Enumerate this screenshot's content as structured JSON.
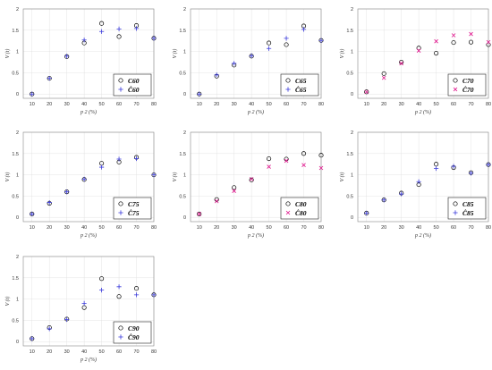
{
  "colors": {
    "circle": "#000000",
    "plus": "#3a3adb",
    "cross": "#e0148c",
    "axis": "#888888",
    "grid": "#dddddd"
  },
  "chart_data": [
    {
      "type": "scatter",
      "ylabel": "V (t)",
      "xlabel": "p 2 (%)",
      "xlim": [
        5,
        80
      ],
      "ylim": [
        -0.1,
        2
      ],
      "xticks": [
        "10",
        "20",
        "30",
        "40",
        "50",
        "60",
        "70",
        "80"
      ],
      "yticks": [
        "0",
        "0.5",
        "1",
        "1.5",
        "2"
      ],
      "legend_position": "bottom-right",
      "x": [
        10,
        20,
        30,
        40,
        50,
        60,
        70,
        80
      ],
      "series": [
        {
          "name": "C60",
          "marker": "circle",
          "values": [
            0.0,
            0.37,
            0.88,
            1.2,
            1.66,
            1.35,
            1.61,
            1.31
          ]
        },
        {
          "name": "Ĉ60",
          "marker": "plus",
          "values": [
            0.0,
            0.37,
            0.89,
            1.27,
            1.47,
            1.53,
            1.54,
            1.31
          ]
        }
      ]
    },
    {
      "type": "scatter",
      "ylabel": "V (t)",
      "xlabel": "p 2 (%)",
      "xlim": [
        5,
        80
      ],
      "ylim": [
        -0.1,
        2
      ],
      "xticks": [
        "10",
        "20",
        "30",
        "40",
        "50",
        "60",
        "70",
        "80"
      ],
      "yticks": [
        "0",
        "0.5",
        "1",
        "1.5",
        "2"
      ],
      "legend_position": "bottom-right",
      "x": [
        10,
        20,
        30,
        40,
        50,
        60,
        70,
        80
      ],
      "series": [
        {
          "name": "C65",
          "marker": "circle",
          "values": [
            0.0,
            0.42,
            0.68,
            0.89,
            1.2,
            1.16,
            1.6,
            1.26
          ]
        },
        {
          "name": "Ĉ65",
          "marker": "plus",
          "values": [
            0.0,
            0.45,
            0.72,
            0.9,
            1.07,
            1.31,
            1.52,
            1.26
          ]
        }
      ]
    },
    {
      "type": "scatter",
      "ylabel": "V (t)",
      "xlabel": "p 2 (%)",
      "xlim": [
        5,
        80
      ],
      "ylim": [
        -0.1,
        2
      ],
      "xticks": [
        "10",
        "20",
        "30",
        "40",
        "50",
        "60",
        "70",
        "80"
      ],
      "yticks": [
        "0",
        "0.5",
        "1",
        "1.5",
        "2"
      ],
      "legend_position": "bottom-right",
      "x": [
        10,
        20,
        30,
        40,
        50,
        60,
        70,
        80
      ],
      "series": [
        {
          "name": "C70",
          "marker": "circle",
          "values": [
            0.05,
            0.48,
            0.75,
            1.08,
            0.96,
            1.21,
            1.22,
            1.16
          ]
        },
        {
          "name": "Ĉ70",
          "marker": "cross",
          "values": [
            0.05,
            0.38,
            0.72,
            1.02,
            1.24,
            1.38,
            1.41,
            1.22
          ]
        }
      ]
    },
    {
      "type": "scatter",
      "ylabel": "V (t)",
      "xlabel": "p 2 (%)",
      "xlim": [
        5,
        80
      ],
      "ylim": [
        -0.1,
        2
      ],
      "xticks": [
        "10",
        "20",
        "30",
        "40",
        "50",
        "60",
        "70",
        "80"
      ],
      "yticks": [
        "0",
        "0.5",
        "1",
        "1.5",
        "2"
      ],
      "legend_position": "bottom-right",
      "x": [
        10,
        20,
        30,
        40,
        50,
        60,
        70,
        80
      ],
      "series": [
        {
          "name": "C75",
          "marker": "circle",
          "values": [
            0.08,
            0.33,
            0.6,
            0.89,
            1.27,
            1.3,
            1.41,
            1.0
          ]
        },
        {
          "name": "Ĉ75",
          "marker": "plus",
          "values": [
            0.08,
            0.35,
            0.6,
            0.9,
            1.18,
            1.37,
            1.38,
            1.0
          ]
        }
      ]
    },
    {
      "type": "scatter",
      "ylabel": "V (t)",
      "xlabel": "p 2 (%)",
      "xlim": [
        5,
        80
      ],
      "ylim": [
        -0.1,
        2
      ],
      "xticks": [
        "10",
        "20",
        "30",
        "40",
        "50",
        "60",
        "70",
        "80"
      ],
      "yticks": [
        "0",
        "0.5",
        "1",
        "1.5",
        "2"
      ],
      "legend_position": "bottom-right",
      "x": [
        10,
        20,
        30,
        40,
        50,
        60,
        70,
        80
      ],
      "series": [
        {
          "name": "C80",
          "marker": "circle",
          "values": [
            0.08,
            0.42,
            0.7,
            0.88,
            1.38,
            1.37,
            1.5,
            1.46
          ]
        },
        {
          "name": "Ĉ80",
          "marker": "cross",
          "values": [
            0.08,
            0.38,
            0.62,
            0.9,
            1.19,
            1.33,
            1.23,
            1.16
          ]
        }
      ]
    },
    {
      "type": "scatter",
      "ylabel": "V (t)",
      "xlabel": "p 2 (%)",
      "xlim": [
        5,
        80
      ],
      "ylim": [
        -0.1,
        2
      ],
      "xticks": [
        "10",
        "20",
        "30",
        "40",
        "50",
        "60",
        "70",
        "80"
      ],
      "yticks": [
        "0",
        "0.5",
        "1",
        "1.5",
        "2"
      ],
      "legend_position": "bottom-right",
      "x": [
        10,
        20,
        30,
        40,
        50,
        60,
        70,
        80
      ],
      "series": [
        {
          "name": "C85",
          "marker": "circle",
          "values": [
            0.1,
            0.41,
            0.57,
            0.77,
            1.25,
            1.17,
            1.05,
            1.24
          ]
        },
        {
          "name": "Ĉ85",
          "marker": "plus",
          "values": [
            0.1,
            0.41,
            0.55,
            0.84,
            1.15,
            1.2,
            1.04,
            1.24
          ]
        }
      ]
    },
    {
      "type": "scatter",
      "ylabel": "V (t)",
      "xlabel": "p 2 (%)",
      "xlim": [
        5,
        80
      ],
      "ylim": [
        -0.1,
        2
      ],
      "xticks": [
        "10",
        "20",
        "30",
        "40",
        "50",
        "60",
        "70",
        "80"
      ],
      "yticks": [
        "0",
        "0.5",
        "1",
        "1.5",
        "2"
      ],
      "legend_position": "bottom-right",
      "x": [
        10,
        20,
        30,
        40,
        50,
        60,
        70,
        80
      ],
      "series": [
        {
          "name": "C90",
          "marker": "circle",
          "values": [
            0.07,
            0.33,
            0.53,
            0.8,
            1.48,
            1.06,
            1.25,
            1.1
          ]
        },
        {
          "name": "Ĉ90",
          "marker": "plus",
          "values": [
            0.07,
            0.3,
            0.52,
            0.9,
            1.21,
            1.29,
            1.1,
            1.1
          ]
        }
      ]
    }
  ]
}
